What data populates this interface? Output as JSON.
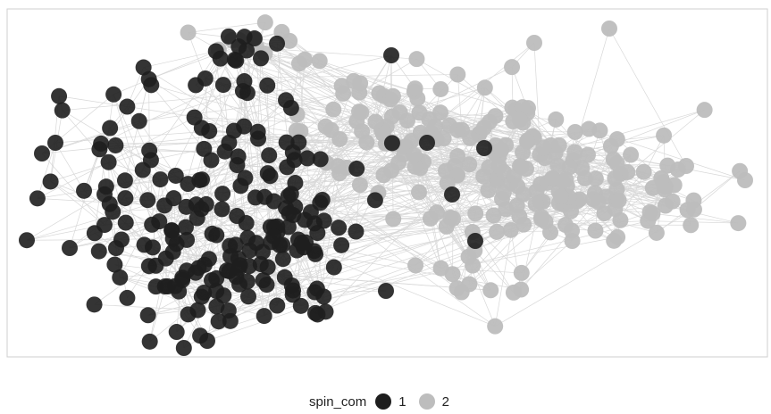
{
  "chart_data": {
    "type": "network",
    "legend": {
      "title": "spin_com",
      "position": "bottom",
      "entries": [
        {
          "label": "1",
          "color": "#1e1e1e"
        },
        {
          "label": "2",
          "color": "#bdbdbd"
        }
      ]
    },
    "edge_color": "#d8d8d8",
    "panel_border_color": "#cfcfcf",
    "grid": false,
    "axes": false,
    "communities": [
      {
        "name": "1",
        "color": "#1e1e1e"
      },
      {
        "name": "2",
        "color": "#bdbdbd"
      }
    ]
  }
}
